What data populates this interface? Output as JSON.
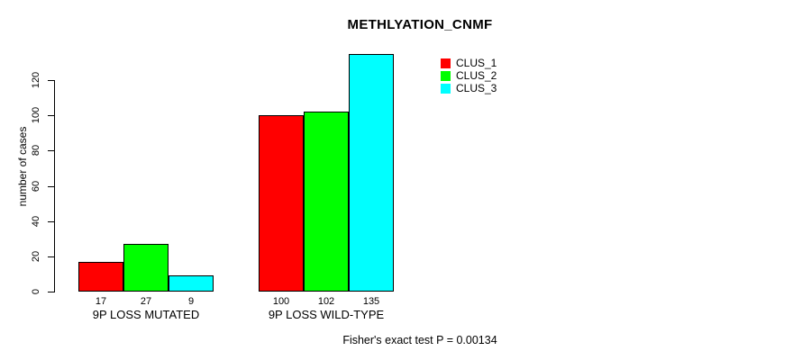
{
  "title": "METHLYATION_CNMF",
  "ylabel": "number of cases",
  "footer": "Fisher's exact test P = 0.00134",
  "legend": {
    "position": "top-right",
    "items": [
      {
        "label": "CLUS_1",
        "color": "#ff0000"
      },
      {
        "label": "CLUS_2",
        "color": "#00ff00"
      },
      {
        "label": "CLUS_3",
        "color": "#00ffff"
      }
    ]
  },
  "chart_data": {
    "type": "bar",
    "title": "METHLYATION_CNMF",
    "xlabel": "",
    "ylabel": "number of cases",
    "categories": [
      "9P LOSS MUTATED",
      "9P LOSS WILD-TYPE"
    ],
    "series": [
      {
        "name": "CLUS_1",
        "color": "#ff0000",
        "values": [
          17,
          100
        ]
      },
      {
        "name": "CLUS_2",
        "color": "#00ff00",
        "values": [
          27,
          102
        ]
      },
      {
        "name": "CLUS_3",
        "color": "#00ffff",
        "values": [
          9,
          135
        ]
      }
    ],
    "bar_value_labels": [
      [
        "17",
        "27",
        "9"
      ],
      [
        "100",
        "102",
        "135"
      ]
    ],
    "yticks": [
      0,
      20,
      40,
      60,
      80,
      100,
      120
    ],
    "ylim": [
      0,
      135
    ],
    "grid": false,
    "legend_position": "top-right",
    "annotation": "Fisher's exact test P = 0.00134"
  }
}
